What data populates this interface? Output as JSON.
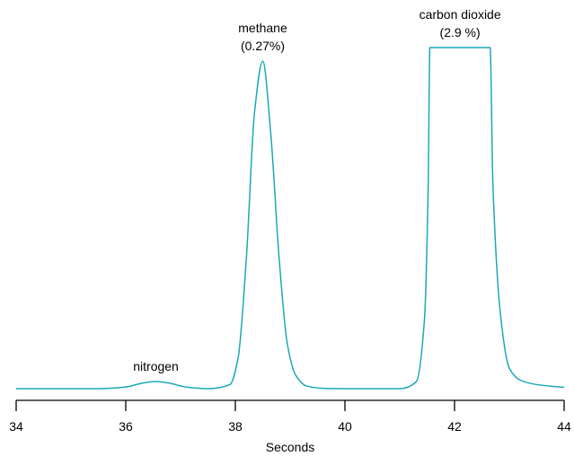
{
  "chart_data": {
    "type": "line",
    "title": "",
    "xlabel": "Seconds",
    "ylabel": "",
    "xlim": [
      34,
      44
    ],
    "ylim": [
      0,
      1
    ],
    "xticks": [
      34,
      36,
      38,
      40,
      42,
      44
    ],
    "xtick_labels": [
      "34",
      "36",
      "38",
      "40",
      "42",
      "44"
    ],
    "grid": false,
    "legend": "none",
    "colors": {
      "trace": "#1aa8b8",
      "axis": "#000000"
    },
    "series": [
      {
        "x": [
          34.0,
          35.5,
          36.0,
          36.3,
          36.55,
          36.8,
          37.1,
          37.5,
          37.9,
          38.05,
          38.2,
          38.35,
          38.5,
          38.65,
          38.8,
          38.95,
          39.1,
          39.3,
          39.6,
          40.0,
          41.0,
          41.3,
          41.45,
          41.52,
          41.55,
          42.65,
          42.7,
          42.85,
          43.0,
          43.2,
          43.5,
          44.0
        ],
        "y": [
          0.0,
          0.0,
          0.005,
          0.016,
          0.021,
          0.016,
          0.005,
          0.0,
          0.012,
          0.09,
          0.38,
          0.81,
          0.96,
          0.74,
          0.38,
          0.13,
          0.04,
          0.008,
          0.001,
          0.0,
          0.0,
          0.02,
          0.2,
          0.6,
          1.0,
          1.0,
          0.6,
          0.2,
          0.06,
          0.025,
          0.012,
          0.004
        ]
      }
    ],
    "annotations": [
      {
        "x": 36.55,
        "y": 0.021,
        "lines": [
          "nitrogen"
        ]
      },
      {
        "x": 38.5,
        "y": 0.96,
        "lines": [
          "methane",
          "(0.27%)"
        ]
      },
      {
        "x": 42.1,
        "y": 1.0,
        "lines": [
          "carbon dioxide",
          "(2.9 %)"
        ]
      }
    ]
  }
}
